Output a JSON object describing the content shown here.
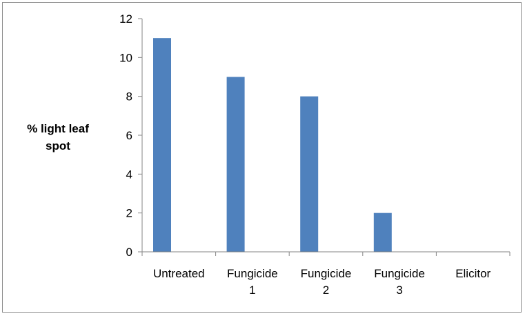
{
  "chart_data": {
    "type": "bar",
    "title": "",
    "xlabel": "",
    "ylabel": [
      "% light leaf",
      "spot"
    ],
    "categories": [
      [
        "Untreated"
      ],
      [
        "Fungicide",
        "1"
      ],
      [
        "Fungicide",
        "2"
      ],
      [
        "Fungicide",
        "3"
      ],
      [
        "Elicitor"
      ]
    ],
    "values": [
      11,
      9,
      8,
      2,
      0
    ],
    "ylim": [
      0,
      12
    ],
    "yticks": [
      0,
      2,
      4,
      6,
      8,
      10,
      12
    ],
    "grid": false,
    "legend": "none",
    "bar_color": "#4f81bd",
    "axis_color": "#868686"
  }
}
